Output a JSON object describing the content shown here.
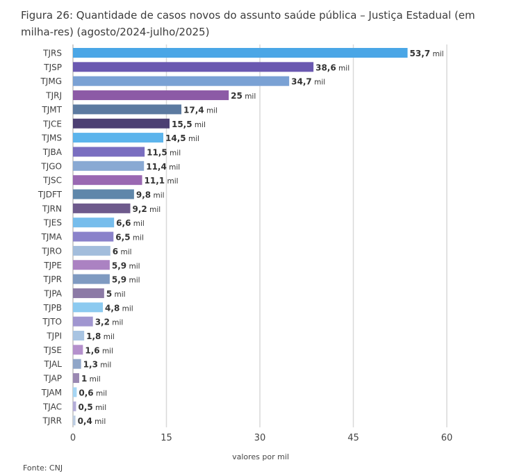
{
  "chart_data": {
    "type": "bar",
    "orientation": "horizontal",
    "title": "Figura 26: Quantidade de casos novos do assunto saúde pública – Justiça Estadual (em milha-res) (agosto/2024-julho/2025)",
    "xlabel": "valores por mil",
    "ylabel": "",
    "xlim": [
      0,
      60
    ],
    "xticks": [
      0,
      15,
      30,
      45,
      60
    ],
    "grid": true,
    "value_suffix": "mil",
    "source": "Fonte: CNJ",
    "categories": [
      "TJRS",
      "TJSP",
      "TJMG",
      "TJRJ",
      "TJMT",
      "TJCE",
      "TJMS",
      "TJBA",
      "TJGO",
      "TJSC",
      "TJDFT",
      "TJRN",
      "TJES",
      "TJMA",
      "TJRO",
      "TJPE",
      "TJPR",
      "TJPA",
      "TJPB",
      "TJTO",
      "TJPI",
      "TJSE",
      "TJAL",
      "TJAP",
      "TJAM",
      "TJAC",
      "TJRR"
    ],
    "values": [
      53.7,
      38.6,
      34.7,
      25,
      17.4,
      15.5,
      14.5,
      11.5,
      11.4,
      11.1,
      9.8,
      9.2,
      6.6,
      6.5,
      6,
      5.9,
      5.9,
      5,
      4.8,
      3.2,
      1.8,
      1.6,
      1.3,
      1,
      0.6,
      0.5,
      0.4
    ],
    "value_labels": [
      "53,7",
      "38,6",
      "34,7",
      "25",
      "17,4",
      "15,5",
      "14,5",
      "11,5",
      "11,4",
      "11,1",
      "9,8",
      "9,2",
      "6,6",
      "6,5",
      "6",
      "5,9",
      "5,9",
      "5",
      "4,8",
      "3,2",
      "1,8",
      "1,6",
      "1,3",
      "1",
      "0,6",
      "0,5",
      "0,4"
    ],
    "colors": [
      "#4aa6e6",
      "#6a58b0",
      "#7aa1d4",
      "#8c5aa6",
      "#5c7aa0",
      "#4c3f73",
      "#5cb4ec",
      "#7a6ec0",
      "#89a9d3",
      "#9a68b2",
      "#5f87aa",
      "#6e5a8c",
      "#76bdec",
      "#8a82ca",
      "#a3bddc",
      "#ab82c2",
      "#7f9ac1",
      "#8c7aa6",
      "#8ccaf0",
      "#a096d0",
      "#a8c4e2",
      "#b490cc",
      "#90a6c8",
      "#9a88b2",
      "#a6d6f4",
      "#b3acd8",
      "#bccde2"
    ]
  }
}
